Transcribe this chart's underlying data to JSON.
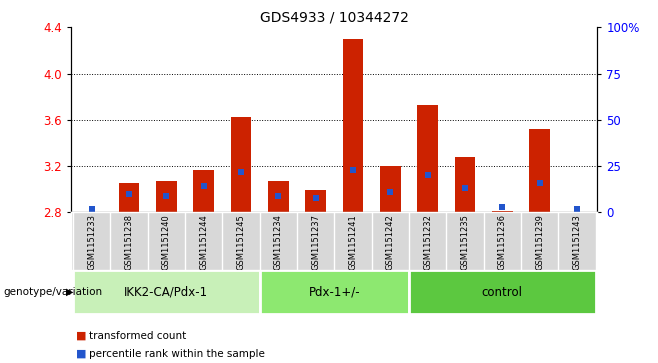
{
  "title": "GDS4933 / 10344272",
  "samples": [
    "GSM1151233",
    "GSM1151238",
    "GSM1151240",
    "GSM1151244",
    "GSM1151245",
    "GSM1151234",
    "GSM1151237",
    "GSM1151241",
    "GSM1151242",
    "GSM1151232",
    "GSM1151235",
    "GSM1151236",
    "GSM1151239",
    "GSM1151243"
  ],
  "red_values": [
    2.8,
    3.05,
    3.07,
    3.17,
    3.62,
    3.07,
    2.99,
    4.3,
    3.2,
    3.73,
    3.28,
    2.81,
    3.52,
    2.8
  ],
  "blue_pct": [
    2,
    10,
    9,
    14,
    22,
    9,
    8,
    23,
    11,
    20,
    13,
    3,
    16,
    2
  ],
  "ylim_left": [
    2.8,
    4.4
  ],
  "ylim_right": [
    0,
    100
  ],
  "yticks_left": [
    2.8,
    3.2,
    3.6,
    4.0,
    4.4
  ],
  "yticks_right": [
    0,
    25,
    50,
    75,
    100
  ],
  "groups": [
    {
      "label": "IKK2-CA/Pdx-1",
      "start": 0,
      "end": 5
    },
    {
      "label": "Pdx-1+/-",
      "start": 5,
      "end": 9
    },
    {
      "label": "control",
      "start": 9,
      "end": 14
    }
  ],
  "group_colors": [
    "#c8f0b8",
    "#8de870",
    "#5cc840"
  ],
  "bar_color": "#cc2200",
  "blue_color": "#2255cc",
  "baseline": 2.8,
  "bar_width": 0.55,
  "group_label": "genotype/variation",
  "legend_red": "transformed count",
  "legend_blue": "percentile rank within the sample",
  "title_fontsize": 10,
  "grid_lines": [
    3.2,
    3.6,
    4.0
  ],
  "sample_box_color": "#d8d8d8",
  "min_bar_height": 0.005
}
